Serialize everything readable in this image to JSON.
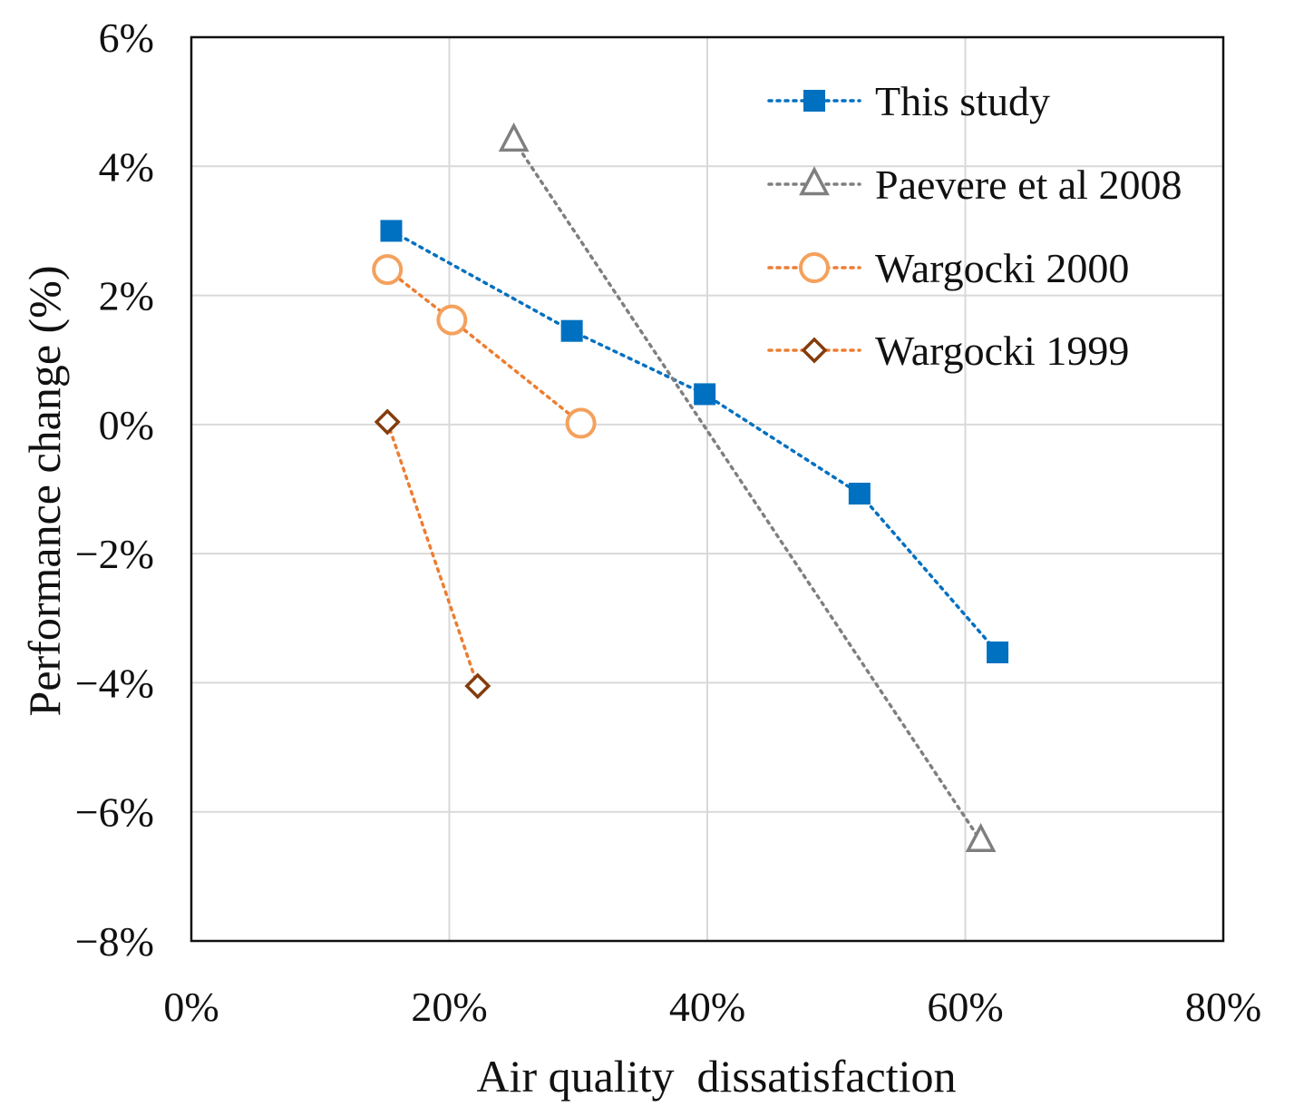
{
  "chart_data": {
    "type": "scatter",
    "title": "",
    "xlabel": "Air quality  dissatisfaction",
    "ylabel": "Performance change (%)",
    "xlim": [
      0,
      80
    ],
    "ylim": [
      -8,
      6
    ],
    "x_ticks": [
      0,
      20,
      40,
      60,
      80
    ],
    "y_ticks": [
      -8,
      -6,
      -4,
      -2,
      0,
      2,
      4,
      6
    ],
    "x_tick_labels": [
      "0%",
      "20%",
      "40%",
      "60%",
      "80%"
    ],
    "y_tick_labels": [
      "−8%",
      "−6%",
      "−4%",
      "−2%",
      "0%",
      "2%",
      "4%",
      "6%"
    ],
    "grid": true,
    "legend_position": "top-right",
    "series": [
      {
        "name": "This study",
        "marker": "square",
        "color": "#0070C0",
        "line": "dotted",
        "x": [
          15.5,
          29.5,
          39.8,
          51.8,
          62.5
        ],
        "y": [
          3.0,
          1.45,
          0.47,
          -1.07,
          -3.53
        ]
      },
      {
        "name": "Paevere et al 2008",
        "marker": "triangle",
        "color": "#7F7F7F",
        "line": "dotted",
        "x": [
          25.0,
          61.2
        ],
        "y": [
          4.4,
          -6.45
        ]
      },
      {
        "name": "Wargocki 2000",
        "marker": "circle",
        "color": "#F4A15D",
        "line_color": "#ED7D31",
        "line": "dotted",
        "x": [
          15.2,
          20.2,
          30.2
        ],
        "y": [
          2.4,
          1.62,
          0.02
        ]
      },
      {
        "name": "Wargocki 1999",
        "marker": "diamond",
        "color": "#843C0C",
        "line_color": "#ED7D31",
        "line": "dotted",
        "x": [
          15.2,
          22.2
        ],
        "y": [
          0.04,
          -4.05
        ]
      }
    ]
  }
}
